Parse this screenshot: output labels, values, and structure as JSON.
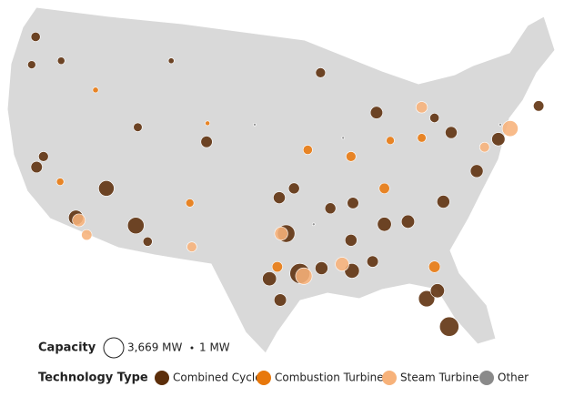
{
  "legend": {
    "capacity_title": "Capacity",
    "size_max": {
      "value": 3669,
      "label": "3,669 MW"
    },
    "size_min": {
      "value": 1,
      "label": "1 MW"
    },
    "type_title": "Technology Type",
    "types": [
      {
        "name": "Combined Cycle",
        "color": "#5c2e0a"
      },
      {
        "name": "Combustion Turbine",
        "color": "#e8780c"
      },
      {
        "name": "Steam Turbine",
        "color": "#f7b27a"
      },
      {
        "name": "Other",
        "color": "#8a8a8a"
      }
    ]
  },
  "plants": [
    {
      "lon": -122.3,
      "lat": 47.6,
      "capacity": 800,
      "type": "Combined Cycle"
    },
    {
      "lon": -122.7,
      "lat": 45.5,
      "capacity": 600,
      "type": "Combined Cycle"
    },
    {
      "lon": -119.7,
      "lat": 45.8,
      "capacity": 500,
      "type": "Combined Cycle"
    },
    {
      "lon": -116.2,
      "lat": 43.6,
      "capacity": 300,
      "type": "Combustion Turbine"
    },
    {
      "lon": -122.2,
      "lat": 37.8,
      "capacity": 1200,
      "type": "Combined Cycle"
    },
    {
      "lon": -121.5,
      "lat": 38.6,
      "capacity": 900,
      "type": "Combined Cycle"
    },
    {
      "lon": -119.8,
      "lat": 36.7,
      "capacity": 500,
      "type": "Combustion Turbine"
    },
    {
      "lon": -118.2,
      "lat": 34.0,
      "capacity": 2000,
      "type": "Combined Cycle"
    },
    {
      "lon": -117.9,
      "lat": 33.8,
      "capacity": 1500,
      "type": "Steam Turbine"
    },
    {
      "lon": -117.1,
      "lat": 32.7,
      "capacity": 1000,
      "type": "Steam Turbine"
    },
    {
      "lon": -115.1,
      "lat": 36.2,
      "capacity": 2200,
      "type": "Combined Cycle"
    },
    {
      "lon": -112.1,
      "lat": 33.4,
      "capacity": 2500,
      "type": "Combined Cycle"
    },
    {
      "lon": -110.9,
      "lat": 32.2,
      "capacity": 800,
      "type": "Combined Cycle"
    },
    {
      "lon": -106.6,
      "lat": 35.1,
      "capacity": 600,
      "type": "Combustion Turbine"
    },
    {
      "lon": -106.4,
      "lat": 31.8,
      "capacity": 900,
      "type": "Steam Turbine"
    },
    {
      "lon": -104.9,
      "lat": 39.7,
      "capacity": 1200,
      "type": "Combined Cycle"
    },
    {
      "lon": -111.9,
      "lat": 40.8,
      "capacity": 700,
      "type": "Combined Cycle"
    },
    {
      "lon": -104.8,
      "lat": 41.1,
      "capacity": 200,
      "type": "Combustion Turbine"
    },
    {
      "lon": -108.5,
      "lat": 45.8,
      "capacity": 300,
      "type": "Combined Cycle"
    },
    {
      "lon": -93.3,
      "lat": 44.9,
      "capacity": 900,
      "type": "Combined Cycle"
    },
    {
      "lon": -94.6,
      "lat": 39.1,
      "capacity": 800,
      "type": "Combustion Turbine"
    },
    {
      "lon": -97.5,
      "lat": 35.5,
      "capacity": 1300,
      "type": "Combined Cycle"
    },
    {
      "lon": -96.0,
      "lat": 36.2,
      "capacity": 1100,
      "type": "Combined Cycle"
    },
    {
      "lon": -96.8,
      "lat": 32.8,
      "capacity": 2800,
      "type": "Combined Cycle"
    },
    {
      "lon": -97.3,
      "lat": 32.8,
      "capacity": 1600,
      "type": "Steam Turbine"
    },
    {
      "lon": -95.4,
      "lat": 29.8,
      "capacity": 3669,
      "type": "Combined Cycle"
    },
    {
      "lon": -95.0,
      "lat": 29.6,
      "capacity": 2500,
      "type": "Steam Turbine"
    },
    {
      "lon": -97.4,
      "lat": 27.8,
      "capacity": 1400,
      "type": "Combined Cycle"
    },
    {
      "lon": -98.5,
      "lat": 29.4,
      "capacity": 1800,
      "type": "Combined Cycle"
    },
    {
      "lon": -97.7,
      "lat": 30.3,
      "capacity": 1000,
      "type": "Combustion Turbine"
    },
    {
      "lon": -93.2,
      "lat": 30.2,
      "capacity": 1500,
      "type": "Combined Cycle"
    },
    {
      "lon": -90.1,
      "lat": 30.0,
      "capacity": 2000,
      "type": "Combined Cycle"
    },
    {
      "lon": -91.1,
      "lat": 30.5,
      "capacity": 1700,
      "type": "Steam Turbine"
    },
    {
      "lon": -90.2,
      "lat": 32.3,
      "capacity": 1300,
      "type": "Combined Cycle"
    },
    {
      "lon": -86.8,
      "lat": 33.5,
      "capacity": 1800,
      "type": "Combined Cycle"
    },
    {
      "lon": -88.0,
      "lat": 30.7,
      "capacity": 1200,
      "type": "Combined Cycle"
    },
    {
      "lon": -84.4,
      "lat": 33.7,
      "capacity": 1600,
      "type": "Combined Cycle"
    },
    {
      "lon": -82.5,
      "lat": 27.9,
      "capacity": 2400,
      "type": "Combined Cycle"
    },
    {
      "lon": -81.4,
      "lat": 28.5,
      "capacity": 1800,
      "type": "Combined Cycle"
    },
    {
      "lon": -80.2,
      "lat": 25.8,
      "capacity": 3400,
      "type": "Combined Cycle"
    },
    {
      "lon": -81.7,
      "lat": 30.3,
      "capacity": 1200,
      "type": "Combustion Turbine"
    },
    {
      "lon": -80.8,
      "lat": 35.2,
      "capacity": 1500,
      "type": "Combined Cycle"
    },
    {
      "lon": -86.8,
      "lat": 36.2,
      "capacity": 1000,
      "type": "Combustion Turbine"
    },
    {
      "lon": -87.6,
      "lat": 41.9,
      "capacity": 1400,
      "type": "Combined Cycle"
    },
    {
      "lon": -83.0,
      "lat": 42.3,
      "capacity": 1200,
      "type": "Steam Turbine"
    },
    {
      "lon": -81.7,
      "lat": 41.5,
      "capacity": 800,
      "type": "Combined Cycle"
    },
    {
      "lon": -80.0,
      "lat": 40.4,
      "capacity": 1300,
      "type": "Combined Cycle"
    },
    {
      "lon": -83.0,
      "lat": 40.0,
      "capacity": 700,
      "type": "Combustion Turbine"
    },
    {
      "lon": -86.2,
      "lat": 39.8,
      "capacity": 600,
      "type": "Combustion Turbine"
    },
    {
      "lon": -75.2,
      "lat": 39.9,
      "capacity": 1600,
      "type": "Combined Cycle"
    },
    {
      "lon": -74.0,
      "lat": 40.7,
      "capacity": 2300,
      "type": "Steam Turbine"
    },
    {
      "lon": -71.1,
      "lat": 42.4,
      "capacity": 1000,
      "type": "Combined Cycle"
    },
    {
      "lon": -77.4,
      "lat": 37.5,
      "capacity": 1500,
      "type": "Combined Cycle"
    },
    {
      "lon": -76.6,
      "lat": 39.3,
      "capacity": 900,
      "type": "Steam Turbine"
    },
    {
      "lon": -90.2,
      "lat": 38.6,
      "capacity": 900,
      "type": "Combustion Turbine"
    },
    {
      "lon": -90.0,
      "lat": 35.1,
      "capacity": 1200,
      "type": "Combined Cycle"
    },
    {
      "lon": -92.3,
      "lat": 34.7,
      "capacity": 1100,
      "type": "Combined Cycle"
    },
    {
      "lon": -91.0,
      "lat": 40.0,
      "capacity": 50,
      "type": "Other"
    },
    {
      "lon": -100.0,
      "lat": 41.0,
      "capacity": 30,
      "type": "Other"
    },
    {
      "lon": -75.0,
      "lat": 41.0,
      "capacity": 60,
      "type": "Other"
    },
    {
      "lon": -94.0,
      "lat": 33.5,
      "capacity": 40,
      "type": "Other"
    }
  ]
}
